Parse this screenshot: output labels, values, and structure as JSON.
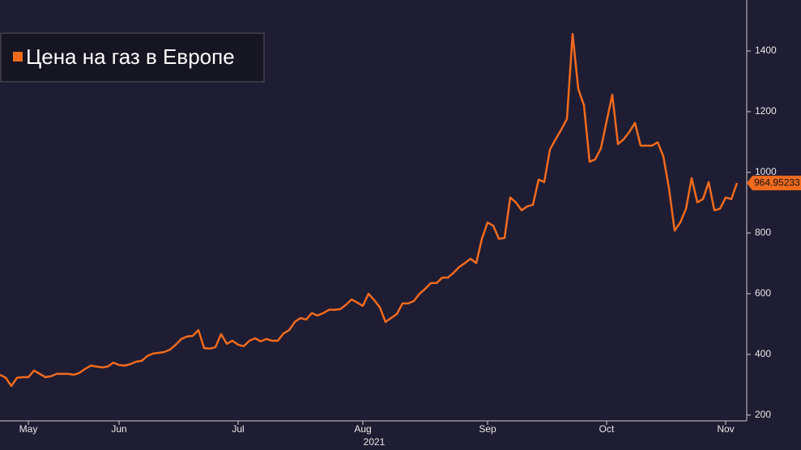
{
  "chart_data": {
    "type": "line",
    "xlabel": "2021",
    "categories": [
      null,
      null,
      null,
      null,
      null,
      "May",
      null,
      null,
      null,
      null,
      null,
      null,
      null,
      null,
      null,
      null,
      null,
      null,
      null,
      null,
      null,
      "Jun",
      null,
      null,
      null,
      null,
      null,
      null,
      null,
      null,
      null,
      null,
      null,
      null,
      null,
      null,
      null,
      null,
      null,
      null,
      null,
      null,
      "Jul",
      null,
      null,
      null,
      null,
      null,
      null,
      null,
      null,
      null,
      null,
      null,
      null,
      null,
      null,
      null,
      null,
      null,
      null,
      null,
      null,
      null,
      "Aug",
      null,
      null,
      null,
      null,
      null,
      null,
      null,
      null,
      null,
      null,
      null,
      null,
      null,
      null,
      null,
      null,
      null,
      null,
      null,
      null,
      null,
      "Sep",
      null,
      null,
      null,
      null,
      null,
      null,
      null,
      null,
      null,
      null,
      null,
      null,
      null,
      null,
      null,
      null,
      null,
      null,
      null,
      null,
      "Oct",
      null,
      null,
      null,
      null,
      null,
      null,
      null,
      null,
      null,
      null,
      null,
      null,
      null,
      null,
      null,
      null,
      null,
      null,
      null,
      null,
      "Nov",
      null,
      null
    ],
    "series": [
      {
        "name": "Цена на газ в Европе",
        "color": "#f26b1d",
        "values": [
          333,
          323,
          296,
          323,
          325,
          325,
          347,
          336,
          325,
          328,
          336,
          336,
          336,
          333,
          339,
          352,
          363,
          360,
          357,
          360,
          373,
          365,
          363,
          368,
          376,
          379,
          395,
          403,
          405,
          408,
          416,
          432,
          451,
          459,
          461,
          480,
          421,
          419,
          424,
          467,
          435,
          445,
          432,
          427,
          445,
          453,
          443,
          451,
          445,
          445,
          469,
          480,
          507,
          520,
          515,
          536,
          528,
          536,
          547,
          547,
          549,
          563,
          581,
          571,
          560,
          600,
          579,
          555,
          507,
          520,
          533,
          568,
          568,
          576,
          600,
          616,
          635,
          635,
          653,
          653,
          669,
          688,
          701,
          715,
          701,
          781,
          835,
          824,
          781,
          784,
          917,
          901,
          875,
          888,
          893,
          976,
          968,
          1075,
          1109,
          1141,
          1176,
          1456,
          1275,
          1221,
          1035,
          1043,
          1080,
          1168,
          1256,
          1093,
          1109,
          1133,
          1163,
          1088,
          1088,
          1088,
          1099,
          1053,
          947,
          808,
          835,
          880,
          981,
          901,
          912,
          968,
          875,
          880,
          917,
          912,
          964.95233
        ]
      }
    ],
    "ylim": [
      181,
      1568
    ],
    "yticks": [
      200,
      400,
      600,
      800,
      1000,
      1200,
      1400
    ],
    "grid": false,
    "legend": "upper left"
  }
}
